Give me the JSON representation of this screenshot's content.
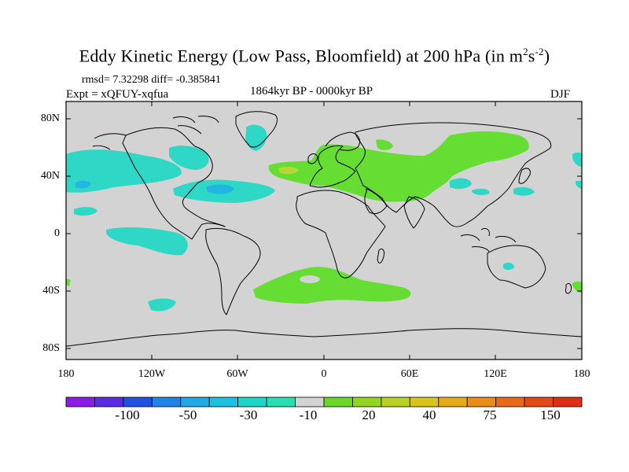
{
  "title": {
    "main": "Eddy Kinetic Energy (Low Pass, Bloomfield) at 200 hPa (in m",
    "sup1": "2",
    "mid": "s",
    "sup2": "-2",
    "end": ")"
  },
  "stats": "rmsd= 7.32298 diff= -0.385841",
  "experiment": "Expt = xQFUY-xqfua",
  "period": "1864kyr BP - 0000kyr BP",
  "season": "DJF",
  "lat_labels": [
    "80N",
    "40N",
    "0",
    "40S",
    "80S"
  ],
  "lon_labels": [
    "180",
    "120W",
    "60W",
    "0",
    "60E",
    "120E",
    "180"
  ],
  "colorbar": {
    "labels": [
      "-100",
      "-50",
      "-30",
      "-10",
      "20",
      "40",
      "75",
      "150"
    ],
    "colors": [
      "#8a1ce6",
      "#5a2ee0",
      "#2050e0",
      "#1f86e6",
      "#21a8e6",
      "#1cc0e0",
      "#1ad6c8",
      "#26e0b2",
      "#d3d3d3",
      "#6ad62a",
      "#92d620",
      "#b8d020",
      "#d8c41a",
      "#e6ac18",
      "#ea8c18",
      "#e86a18",
      "#e44a18",
      "#de2e14"
    ]
  },
  "map": {
    "background": "#d3d3d3",
    "negative_color": "#2ed7c6",
    "negative_dark": "#21b7e2",
    "positive_color": "#66dd33",
    "positive_light": "#b4d936"
  }
}
